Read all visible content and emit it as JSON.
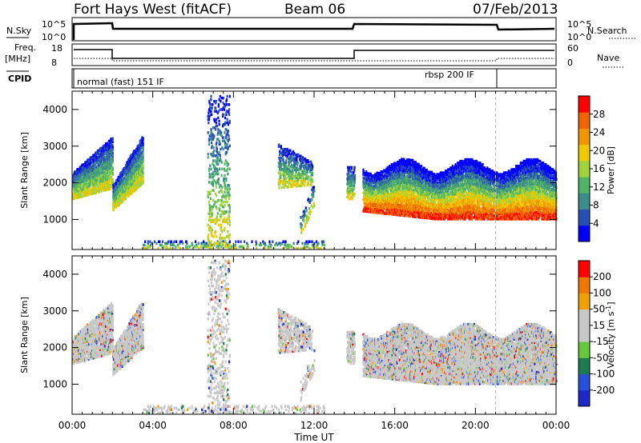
{
  "header": {
    "station": "Fort Hays West (fitACF)",
    "beam": "Beam 06",
    "date": "07/Feb/2013"
  },
  "panels": {
    "nsky": {
      "label": "N.Sky",
      "ticks_left": [
        "10^5",
        "10^0"
      ],
      "ticks_right": [
        "10^5",
        "10^0"
      ],
      "right_label": "N.Search"
    },
    "freq": {
      "label_line1": "Freq.",
      "label_line2": "[MHz]",
      "ticks_left": [
        "18",
        "8"
      ],
      "ticks_right": [
        "60",
        "0"
      ],
      "right_label": "Nave"
    },
    "cpid": {
      "label": "CPID",
      "mode1": "normal (fast) 151 IF",
      "mode2": "rbsp 200 IF"
    }
  },
  "colors": {
    "power": [
      "#0000ff",
      "#2850b4",
      "#3c8c8c",
      "#50b464",
      "#a0d23c",
      "#f0c800",
      "#f09600",
      "#f06400",
      "#ff0000"
    ],
    "velocity": [
      "#1e28c8",
      "#2850dc",
      "#1e7850",
      "#64c83c",
      "#c8c8c8",
      "#c8c8c8",
      "#f0a000",
      "#f07800",
      "#ff0000"
    ],
    "ground": "#c8c8c8"
  },
  "chart_data": [
    {
      "type": "heatmap",
      "title": "Power",
      "xlabel": "Time UT",
      "ylabel": "Slant Range [km]",
      "x_ticks": [
        "00:00",
        "04:00",
        "08:00",
        "12:00",
        "16:00",
        "20:00",
        "00:00"
      ],
      "y_ticks": [
        "1000",
        "2000",
        "3000",
        "4000"
      ],
      "xlim": [
        0,
        24
      ],
      "ylim": [
        180,
        4500
      ],
      "colorbar_label": "Power [dB]",
      "colorbar_ticks": [
        "28",
        "24",
        "20",
        "16",
        "12",
        "8",
        "4"
      ],
      "colorbar_range": [
        0,
        30
      ]
    },
    {
      "type": "heatmap",
      "title": "Velocity",
      "xlabel": "Time UT",
      "ylabel": "Slant Range [km]",
      "x_ticks": [
        "00:00",
        "04:00",
        "08:00",
        "12:00",
        "16:00",
        "20:00",
        "00:00"
      ],
      "y_ticks": [
        "1000",
        "2000",
        "3000",
        "4000"
      ],
      "xlim": [
        0,
        24
      ],
      "ylim": [
        180,
        4500
      ],
      "colorbar_label": "Velocity [m s^-1]",
      "colorbar_ticks": [
        "200",
        "100",
        "50",
        "15",
        "-15",
        "-50",
        "-100",
        "-200"
      ],
      "colorbar_range": [
        -250,
        250
      ]
    }
  ]
}
